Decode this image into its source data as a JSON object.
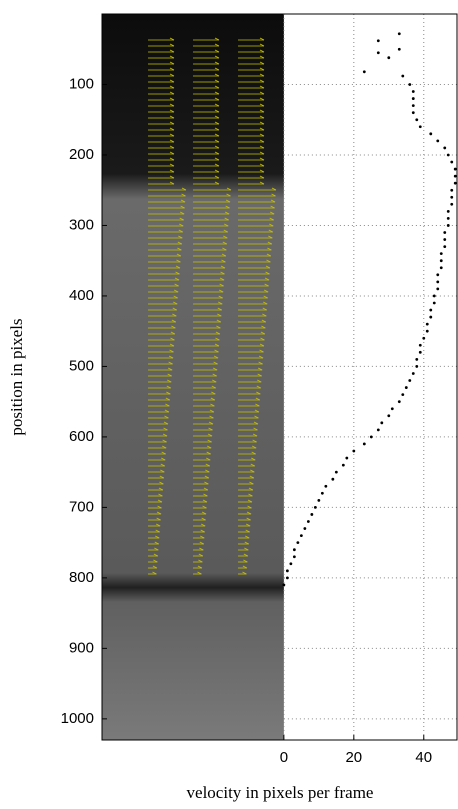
{
  "chart_data": {
    "type": "scatter",
    "x_label": "velocity in pixels per frame",
    "y_label": "position in pixels",
    "xlim": [
      -52,
      49.5
    ],
    "ylim": [
      0,
      1030
    ],
    "y_inverted": true,
    "xticks": [
      0,
      20,
      40
    ],
    "yticks": [
      100,
      200,
      300,
      400,
      500,
      600,
      700,
      800,
      900,
      1000
    ],
    "grid": true,
    "color": "#000000",
    "x": [
      33,
      27,
      33,
      27,
      30,
      23,
      34,
      36,
      37,
      37,
      37,
      37,
      38,
      39,
      42,
      44,
      46,
      47,
      48,
      49,
      49,
      49,
      48,
      48,
      48,
      47,
      47,
      47,
      46,
      46,
      46,
      45,
      45,
      45,
      44,
      44,
      44,
      43,
      43,
      42,
      42,
      41,
      41,
      40,
      39,
      39,
      38,
      38,
      37,
      36,
      35,
      34,
      33,
      31,
      30,
      28,
      27,
      25,
      23,
      20,
      18,
      17,
      15,
      14,
      12,
      11,
      10,
      9,
      8,
      7,
      6,
      5,
      4,
      3,
      3,
      2,
      1,
      1,
      0
    ],
    "y": [
      28,
      38,
      50,
      55,
      62,
      82,
      88,
      100,
      110,
      120,
      130,
      140,
      150,
      160,
      170,
      180,
      190,
      200,
      210,
      220,
      230,
      240,
      250,
      260,
      270,
      280,
      290,
      300,
      310,
      320,
      330,
      340,
      350,
      360,
      370,
      380,
      390,
      400,
      410,
      420,
      430,
      440,
      450,
      460,
      470,
      480,
      490,
      500,
      510,
      520,
      530,
      540,
      550,
      560,
      570,
      580,
      590,
      600,
      610,
      620,
      630,
      640,
      650,
      660,
      670,
      680,
      690,
      700,
      710,
      720,
      730,
      740,
      750,
      760,
      770,
      780,
      790,
      800,
      810
    ]
  }
}
